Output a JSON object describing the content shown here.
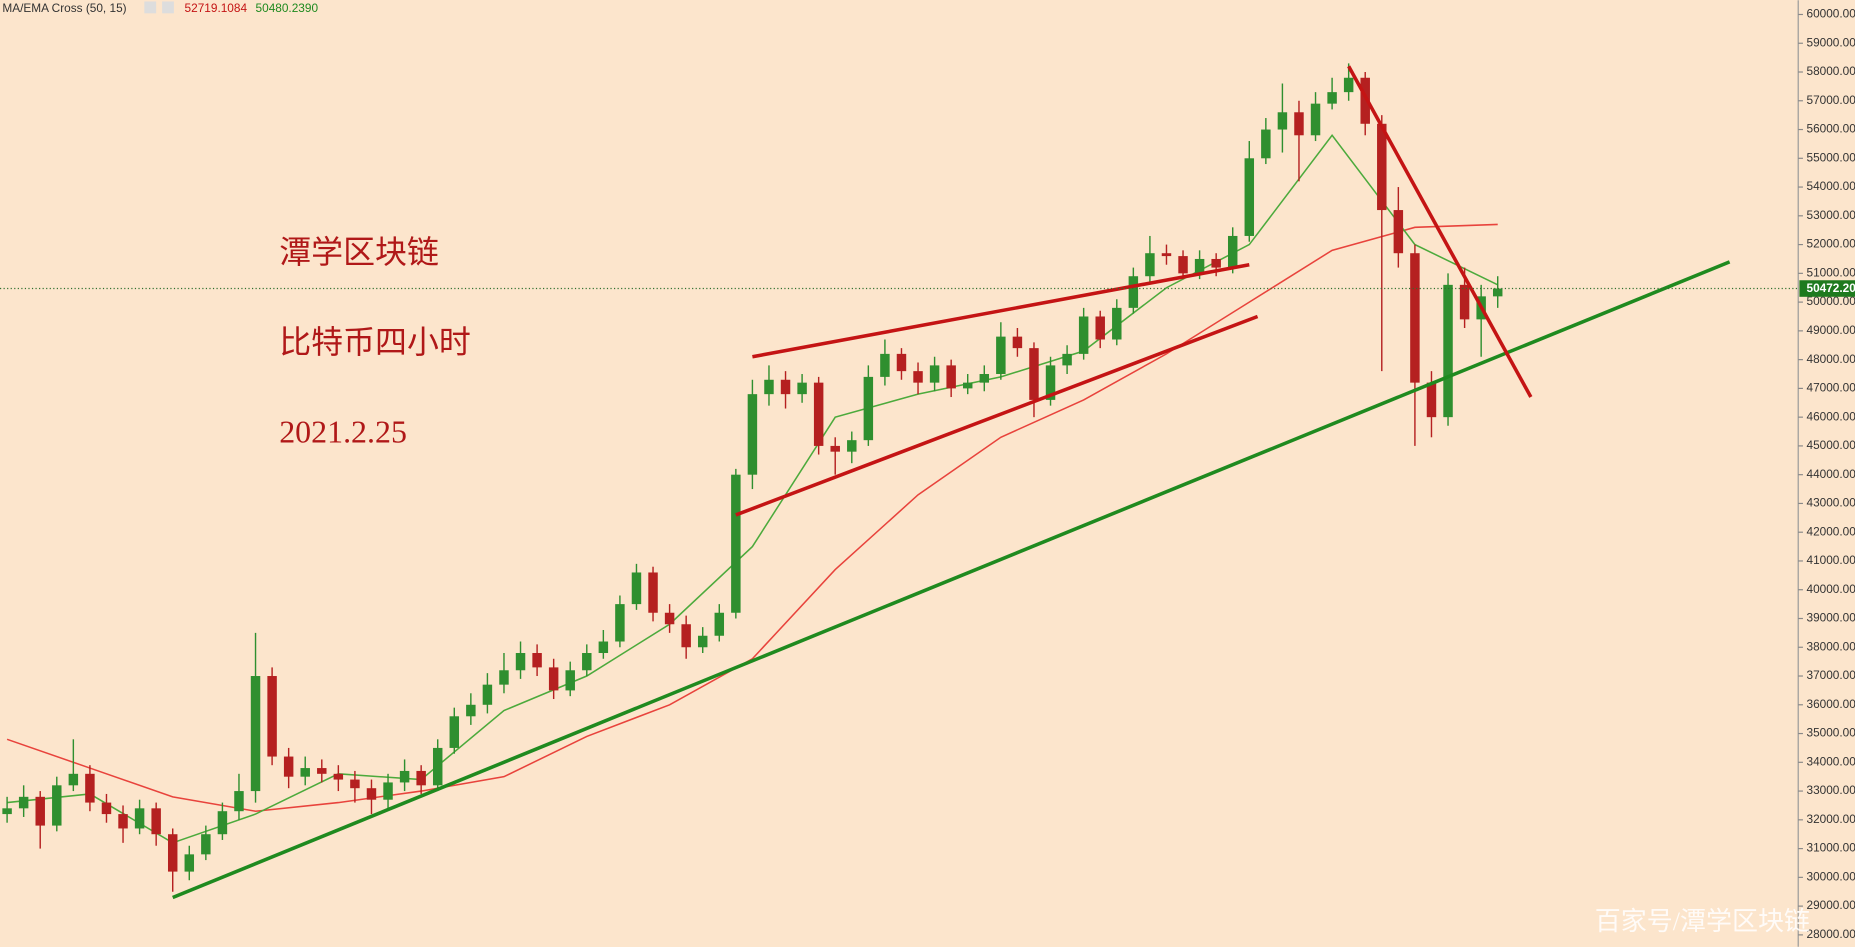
{
  "chart_data": {
    "type": "candlestick",
    "indicator_label": "MA/EMA Cross (50, 15)",
    "title_lines": [
      "潭学区块链",
      "比特币四小时",
      "2021.2.25"
    ],
    "watermark": "百家号/潭学区块链",
    "up_color": "#2f8f2f",
    "down_color": "#b52020",
    "open": [
      32200,
      32400,
      32800,
      31800,
      33200,
      33600,
      32600,
      32200,
      31700,
      32400,
      31500,
      30200,
      30800,
      31500,
      32300,
      33000,
      37000,
      34200,
      33500,
      33800,
      33600,
      33400,
      33100,
      32700,
      33300,
      33700,
      33200,
      34500,
      35600,
      36000,
      36700,
      37200,
      37800,
      37300,
      36500,
      37200,
      37800,
      38200,
      39500,
      40600,
      39200,
      38800,
      38000,
      38400,
      39200,
      44000,
      46800,
      47300,
      46800,
      47200,
      45000,
      44800,
      45200,
      47400,
      48200,
      47600,
      47200,
      47800,
      47000,
      47200,
      47500,
      48800,
      48400,
      46600,
      47800,
      48200,
      49500,
      48700,
      49800,
      50900,
      51700,
      51600,
      51000,
      51500,
      51200,
      52300,
      55000,
      56000,
      56600,
      55800,
      56900,
      57300,
      57800,
      56200,
      53200,
      51700,
      47200,
      46000,
      50600,
      49400,
      50200
    ],
    "high": [
      32800,
      33200,
      33000,
      33500,
      34800,
      33900,
      32900,
      32500,
      32700,
      32600,
      31700,
      31100,
      31800,
      32600,
      33600,
      38500,
      37300,
      34500,
      34200,
      34100,
      33900,
      33700,
      33400,
      33600,
      34100,
      33900,
      34800,
      35900,
      36400,
      37100,
      37800,
      38200,
      38100,
      37600,
      37500,
      38100,
      38600,
      39800,
      40900,
      40800,
      39500,
      39100,
      38700,
      39500,
      44200,
      47300,
      47800,
      47600,
      47500,
      47400,
      45300,
      45500,
      47800,
      48700,
      48400,
      47900,
      48100,
      48000,
      47500,
      47800,
      49300,
      49100,
      48600,
      48100,
      48500,
      49800,
      49700,
      50100,
      51200,
      52300,
      52000,
      51800,
      51800,
      51700,
      52600,
      55600,
      56400,
      57600,
      57000,
      57300,
      57800,
      58300,
      58000,
      56500,
      54000,
      52000,
      47600,
      51000,
      51200,
      50600,
      50900
    ],
    "low": [
      31900,
      32100,
      31000,
      31600,
      33000,
      32300,
      31900,
      31200,
      31500,
      31100,
      29500,
      29900,
      30600,
      31300,
      32000,
      32600,
      33900,
      33100,
      33200,
      33300,
      33000,
      32600,
      32200,
      32400,
      33000,
      32900,
      33000,
      34300,
      35300,
      35700,
      36400,
      36900,
      37000,
      36200,
      36300,
      37000,
      37600,
      38000,
      39300,
      38900,
      38500,
      37600,
      37800,
      38200,
      39000,
      43500,
      46400,
      46300,
      46500,
      44700,
      44000,
      44400,
      45000,
      47100,
      47300,
      46800,
      46900,
      46700,
      46800,
      46900,
      47300,
      48100,
      46000,
      46400,
      47500,
      48000,
      48400,
      48500,
      49600,
      50700,
      51300,
      50800,
      50800,
      50900,
      51000,
      52100,
      54800,
      55200,
      54200,
      55600,
      56700,
      57000,
      55800,
      47600,
      51200,
      45000,
      45300,
      45700,
      49100,
      48100,
      49800
    ],
    "close": [
      32400,
      32800,
      31800,
      33200,
      33600,
      32600,
      32200,
      31700,
      32400,
      31500,
      30200,
      30800,
      31500,
      32300,
      33000,
      37000,
      34200,
      33500,
      33800,
      33600,
      33400,
      33100,
      32700,
      33300,
      33700,
      33200,
      34500,
      35600,
      36000,
      36700,
      37200,
      37800,
      37300,
      36500,
      37200,
      37800,
      38200,
      39500,
      40600,
      39200,
      38800,
      38000,
      38400,
      39200,
      44000,
      46800,
      47300,
      46800,
      47200,
      45000,
      44800,
      45200,
      47400,
      48200,
      47600,
      47200,
      47800,
      47000,
      47200,
      47500,
      48800,
      48400,
      46600,
      47800,
      48200,
      49500,
      48700,
      49800,
      50900,
      51700,
      51600,
      51000,
      51500,
      51200,
      52300,
      55000,
      56000,
      56600,
      55800,
      56900,
      57300,
      57800,
      56200,
      53200,
      51700,
      47200,
      46000,
      50600,
      49400,
      50200,
      50472.2
    ],
    "ma_x": [
      0,
      5,
      10,
      15,
      20,
      25,
      30,
      35,
      40,
      45,
      50,
      55,
      60,
      65,
      70,
      75,
      80,
      85,
      90
    ],
    "series": [
      {
        "color": "#e8433c",
        "last_value": 52719.1084,
        "values": [
          34800,
          33800,
          32800,
          32300,
          32600,
          33000,
          33500,
          34900,
          36000,
          37600,
          40700,
          43300,
          45300,
          46600,
          48200,
          50000,
          51800,
          52600,
          52700
        ]
      },
      {
        "color": "#4caa3c",
        "last_value": {
          "value": 50480.239,
          "label": "50480.2390"
        },
        "values": [
          32600,
          32900,
          31200,
          32200,
          33600,
          33400,
          35800,
          37000,
          38800,
          41500,
          46000,
          46800,
          47400,
          48300,
          50500,
          52000,
          55800,
          52000,
          50600
        ]
      }
    ],
    "trend_lines": [
      {
        "color": "#1f8a1f",
        "x": [
          10,
          104
        ],
        "y": [
          29300,
          51400
        ]
      },
      {
        "color": "#c41414",
        "x": [
          45,
          75
        ],
        "y": [
          48100,
          51300
        ]
      },
      {
        "color": "#c41414",
        "x": [
          44,
          75.5
        ],
        "y": [
          42600,
          49500
        ]
      },
      {
        "color": "#c41414",
        "x": [
          81,
          92
        ],
        "y": [
          58200,
          46700
        ]
      }
    ],
    "last_price": {
      "value": 50472.2,
      "label": "50472.20"
    },
    "ylim": [
      28000,
      60000
    ],
    "yticks": [
      {
        "value": 60000,
        "label": "60000.00"
      },
      {
        "value": 59000,
        "label": "59000.00"
      },
      {
        "value": 58000,
        "label": "58000.00"
      },
      {
        "value": 57000,
        "label": "57000.00"
      },
      {
        "value": 56000,
        "label": "56000.00"
      },
      {
        "value": 55000,
        "label": "55000.00"
      },
      {
        "value": 54000,
        "label": "54000.00"
      },
      {
        "value": 53000,
        "label": "53000.00"
      },
      {
        "value": 52000,
        "label": "52000.00"
      },
      {
        "value": 51000,
        "label": "51000.00"
      },
      {
        "value": 50000,
        "label": "50000.00"
      },
      {
        "value": 49000,
        "label": "49000.00"
      },
      {
        "value": 48000,
        "label": "48000.00"
      },
      {
        "value": 47000,
        "label": "47000.00"
      },
      {
        "value": 46000,
        "label": "46000.00"
      },
      {
        "value": 45000,
        "label": "45000.00"
      },
      {
        "value": 44000,
        "label": "44000.00"
      },
      {
        "value": 43000,
        "label": "43000.00"
      },
      {
        "value": 42000,
        "label": "42000.00"
      },
      {
        "value": 41000,
        "label": "41000.00"
      },
      {
        "value": 40000,
        "label": "40000.00"
      },
      {
        "value": 39000,
        "label": "39000.00"
      },
      {
        "value": 38000,
        "label": "38000.00"
      },
      {
        "value": 37000,
        "label": "37000.00"
      },
      {
        "value": 36000,
        "label": "36000.00"
      },
      {
        "value": 35000,
        "label": "35000.00"
      },
      {
        "value": 34000,
        "label": "34000.00"
      },
      {
        "value": 33000,
        "label": "33000.00"
      },
      {
        "value": 32000,
        "label": "32000.00"
      },
      {
        "value": 31000,
        "label": "31000.00"
      },
      {
        "value": 30000,
        "label": "30000.00"
      },
      {
        "value": 29000,
        "label": "29000.00"
      },
      {
        "value": 28000,
        "label": "28000.00"
      }
    ]
  }
}
